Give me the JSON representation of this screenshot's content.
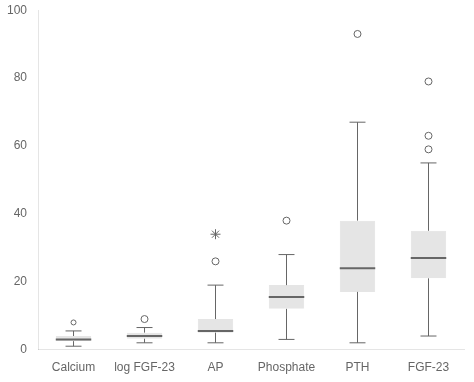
{
  "chart_data": {
    "type": "box",
    "categories": [
      "Calcium",
      "log FGF-23",
      "AP",
      "Phosphate",
      "PTH",
      "FGF-23"
    ],
    "boxes": [
      {
        "q1": 2.5,
        "median": 3.0,
        "q3": 4.0,
        "whislo": 1.0,
        "whishi": 5.5,
        "outliers_circle": [],
        "stars": [],
        "fliers": [
          8.0
        ]
      },
      {
        "q1": 3.2,
        "median": 4.0,
        "q3": 5.0,
        "whislo": 2.0,
        "whishi": 6.5,
        "outliers_circle": [
          9.0
        ],
        "stars": [],
        "fliers": []
      },
      {
        "q1": 5.0,
        "median": 5.5,
        "q3": 9.0,
        "whislo": 2.0,
        "whishi": 19.0,
        "outliers_circle": [
          26.0
        ],
        "stars": [
          34.0
        ],
        "fliers": []
      },
      {
        "q1": 12.0,
        "median": 15.5,
        "q3": 19.0,
        "whislo": 3.0,
        "whishi": 28.0,
        "outliers_circle": [
          38.0
        ],
        "stars": [],
        "fliers": []
      },
      {
        "q1": 17.0,
        "median": 24.0,
        "q3": 38.0,
        "whislo": 2.0,
        "whishi": 67.0,
        "outliers_circle": [
          93.0
        ],
        "stars": [],
        "fliers": []
      },
      {
        "q1": 21.0,
        "median": 27.0,
        "q3": 35.0,
        "whislo": 4.0,
        "whishi": 55.0,
        "outliers_circle": [
          79.0,
          63.0,
          59.0
        ],
        "stars": [],
        "fliers": []
      }
    ],
    "ylim": [
      0,
      100
    ],
    "yticks": [
      0,
      20,
      40,
      60,
      80,
      100
    ],
    "grid": false
  }
}
